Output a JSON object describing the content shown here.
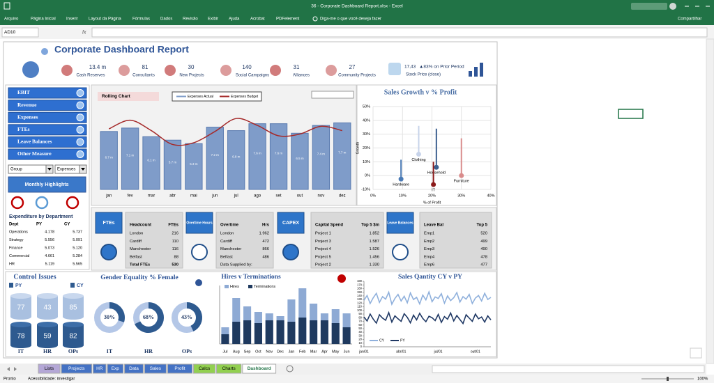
{
  "window": {
    "title": "36 - Corporate Dashboard Report.xlsx - Excel"
  },
  "ribbon": {
    "tabs": [
      "Arquivo",
      "Página Inicial",
      "Inserir",
      "Layout da Página",
      "Fórmulas",
      "Dados",
      "Revisão",
      "Exibir",
      "Ajuda",
      "Acrobat",
      "PDFelement"
    ],
    "search": "Diga-me o que você deseja fazer",
    "share": "Compartilhar"
  },
  "formula_bar": {
    "name_box": "AD10",
    "fx": "fx"
  },
  "dashboard": {
    "title": "Corporate Dashboard Report",
    "kpis": [
      {
        "value": "13.4 m",
        "label": "Cash Reserves"
      },
      {
        "value": "81",
        "label": "Consultants"
      },
      {
        "value": "30",
        "label": "New Projects"
      },
      {
        "value": "140",
        "label": "Social Campaigns"
      },
      {
        "value": "31",
        "label": "Alliances"
      },
      {
        "value": "27",
        "label": "Community Projects"
      }
    ],
    "stock": {
      "value": "17,43",
      "change": "▲83% on Prior Period",
      "label": "Stock Price (close)"
    },
    "menu": [
      "EBIT",
      "Revenue",
      "Expenses",
      "FTEs",
      "Leave Balances",
      "Other Measure"
    ],
    "dropdowns": [
      "Group",
      "Expenses"
    ],
    "highlights": "Monthly Highlights",
    "expenditure": {
      "title": "Expenditure by Department",
      "header": [
        "Dept",
        "PY",
        "CY"
      ],
      "rows": [
        [
          "Operations",
          "4.178",
          "5.737"
        ],
        [
          "Strategy",
          "5.556",
          "5.091"
        ],
        [
          "Finance",
          "5.073",
          "5.120"
        ],
        [
          "Commercial",
          "4.661",
          "5.284"
        ],
        [
          "HR",
          "5.119",
          "5.565"
        ]
      ]
    },
    "tables": [
      {
        "button": "FTEs",
        "header": [
          "Headcount",
          "FTEs"
        ],
        "rows": [
          [
            "London",
            "216"
          ],
          [
            "Cardiff",
            "110"
          ],
          [
            "Manchester",
            "116"
          ],
          [
            "Belfast",
            "88"
          ],
          [
            "Total FTEs",
            "530"
          ]
        ]
      },
      {
        "button": "Overtime Hours",
        "header": [
          "Overtime",
          "Hrs"
        ],
        "rows": [
          [
            "London",
            "1.962"
          ],
          [
            "Cardiff",
            "472"
          ],
          [
            "Manchester",
            "866"
          ],
          [
            "Belfast",
            "486"
          ],
          [
            "Data Supplied by:"
          ]
        ]
      },
      {
        "button": "CAPEX",
        "header": [
          "Capital Spend",
          "Top 5 $m"
        ],
        "rows": [
          [
            "Project 1",
            "1.852"
          ],
          [
            "Project 3",
            "1.587"
          ],
          [
            "Project 4",
            "1.526"
          ],
          [
            "Project 5",
            "1.456"
          ],
          [
            "Project 2",
            "1.330"
          ]
        ]
      },
      {
        "button": "Leave Balances",
        "header": [
          "Leave Bal",
          "Top 5"
        ],
        "rows": [
          [
            "Emp1",
            "520"
          ],
          [
            "Emp2",
            "499"
          ],
          [
            "Emp3",
            "490"
          ],
          [
            "Emp4",
            "478"
          ],
          [
            "Emp6",
            "477"
          ]
        ]
      }
    ]
  },
  "chart_data": [
    {
      "type": "combo",
      "title": "Rolling Chart",
      "categories": [
        "jan",
        "fev",
        "mar",
        "abr",
        "mai",
        "jun",
        "jul",
        "ago",
        "set",
        "out",
        "nov",
        "dez"
      ],
      "series": [
        {
          "name": "Expenses Actual",
          "type": "bar",
          "color": "#7f9cc9",
          "values": [
            6.7,
            7.1,
            6.1,
            5.7,
            5.3,
            7.2,
            6.8,
            7.6,
            7.6,
            6.5,
            7.4,
            7.7
          ],
          "value_labels": [
            "6.7 m",
            "7.1 m",
            "6.1 m",
            "5.7 m",
            "5.3 m",
            "7.2 m",
            "6.8 m",
            "7.6 m",
            "7.6 m",
            "6.5 m",
            "7.4 m",
            "7.7 m"
          ]
        },
        {
          "name": "Expenses Budget",
          "type": "line",
          "color": "#a52a2a",
          "values": [
            7.0,
            8.0,
            6.8,
            5.2,
            5.4,
            6.7,
            8.2,
            7.4,
            6.2,
            6.4,
            7.3,
            6.8
          ]
        }
      ]
    },
    {
      "type": "scatter",
      "title": "Sales Growth v % Profit",
      "x_label": "% of Profit",
      "y_label": "Growth",
      "xlim": [
        0,
        40
      ],
      "xticks": [
        {
          "value": 0,
          "label": "0%"
        },
        {
          "value": 10,
          "label": "10%"
        },
        {
          "value": 20,
          "label": "20%"
        },
        {
          "value": 30,
          "label": "30%"
        },
        {
          "value": 40,
          "label": "40%"
        }
      ],
      "ylim": [
        -10,
        50
      ],
      "yticks": [
        {
          "value": -10,
          "label": "-10%"
        },
        {
          "value": 0,
          "label": "0%"
        },
        {
          "value": 10,
          "label": "10%"
        },
        {
          "value": 20,
          "label": "20%"
        },
        {
          "value": 30,
          "label": "30%"
        },
        {
          "value": 40,
          "label": "40%"
        },
        {
          "value": 50,
          "label": "50%"
        }
      ],
      "grid": true,
      "points": [
        {
          "label": "Hardware",
          "x": 9.5,
          "y": -2.5,
          "stem_top": 11.5,
          "color": "#4a7ab5"
        },
        {
          "label": "Clothing",
          "x": 15.5,
          "y": 15.5,
          "stem_top": 36,
          "color": "#c7d3ea"
        },
        {
          "label": "Household",
          "x": 21.5,
          "y": 6,
          "stem_top": 34,
          "color": "#3b5f8f"
        },
        {
          "label": "IT",
          "x": 20.5,
          "y": -6.5,
          "stem_top": 10,
          "color": "#8b1a1a"
        },
        {
          "label": "Furniture",
          "x": 30,
          "y": 0,
          "stem_top": 27,
          "color": "#d98c8c"
        }
      ]
    },
    {
      "type": "cylinder",
      "title": "Control Issues",
      "categories": [
        "IT",
        "HR",
        "OPs"
      ],
      "series": [
        {
          "name": "PY",
          "color": "#a9c0e0",
          "values": [
            77,
            43,
            85
          ]
        },
        {
          "name": "CY",
          "color": "#2e5a8f",
          "values": [
            78,
            59,
            82
          ]
        }
      ]
    },
    {
      "type": "donut",
      "title": "Gender Equality % Female",
      "categories": [
        "IT",
        "HR",
        "OPs"
      ],
      "values": [
        30,
        68,
        43
      ],
      "value_labels": [
        "30%",
        "68%",
        "43%"
      ],
      "color": "#2e5a8f",
      "track_color": "#b4c7e7"
    },
    {
      "type": "bar",
      "title": "Hires v Terminations",
      "categories": [
        "Jul",
        "Aug",
        "Sep",
        "Oct",
        "Nov",
        "Dec",
        "Jan",
        "Feb",
        "Mar",
        "Apr",
        "May",
        "Jun"
      ],
      "overlap": true,
      "series": [
        {
          "name": "Hires",
          "color": "#8eaad4",
          "values": [
            12,
            33,
            27,
            23,
            22,
            20,
            32,
            40,
            29,
            22,
            25,
            22
          ]
        },
        {
          "name": "Terminations",
          "color": "#1f3a5f",
          "values": [
            7,
            16,
            17,
            15,
            17,
            17,
            16,
            19,
            17,
            17,
            15,
            12
          ]
        }
      ]
    },
    {
      "type": "line",
      "title": "Sales Qantity CY v PY",
      "categories": [
        "jan/01",
        null,
        null,
        null,
        null,
        null,
        null,
        null,
        null,
        null,
        null,
        null,
        "abr/01",
        null,
        null,
        null,
        null,
        null,
        null,
        null,
        null,
        null,
        null,
        null,
        "jul/01",
        null,
        null,
        null,
        null,
        null,
        null,
        null,
        null,
        null,
        null,
        null,
        "out/01",
        null,
        null,
        null,
        null,
        null
      ],
      "ylim": [
        0,
        180
      ],
      "yticks": [
        0,
        10,
        20,
        30,
        40,
        50,
        60,
        70,
        80,
        90,
        100,
        110,
        120,
        130,
        140,
        150,
        160,
        170,
        180
      ],
      "series": [
        {
          "name": "CY",
          "color": "#8fb0dc",
          "values": [
            128,
            141,
            119,
            135,
            147,
            122,
            138,
            131,
            150,
            117,
            133,
            144,
            126,
            139,
            121,
            148,
            130,
            136,
            118,
            142,
            129,
            151,
            124,
            137,
            133,
            146,
            120,
            140,
            127,
            135,
            149,
            123,
            138,
            131,
            144,
            119,
            134,
            141,
            126,
            147,
            130,
            136
          ]
        },
        {
          "name": "PY",
          "color": "#1f3864",
          "values": [
            82,
            71,
            90,
            76,
            65,
            88,
            79,
            73,
            94,
            68,
            85,
            77,
            70,
            91,
            81,
            66,
            87,
            74,
            92,
            78,
            69,
            84,
            80,
            72,
            89,
            67,
            83,
            76,
            93,
            71,
            86,
            75,
            64,
            88,
            79,
            70,
            90,
            77,
            82,
            68,
            85,
            74
          ]
        }
      ]
    }
  ],
  "sheet_tabs": [
    {
      "name": "Lists",
      "color": "#b4a7d6"
    },
    {
      "name": "Projects",
      "color": "#4472c4"
    },
    {
      "name": "HR",
      "color": "#4472c4"
    },
    {
      "name": "Exp",
      "color": "#4472c4"
    },
    {
      "name": "Data",
      "color": "#4472c4"
    },
    {
      "name": "Sales",
      "color": "#4472c4"
    },
    {
      "name": "Profit",
      "color": "#4472c4"
    },
    {
      "name": "Calcs",
      "color": "#92d050"
    },
    {
      "name": "Charts",
      "color": "#92d050"
    },
    {
      "name": "Dashboard",
      "color": "#ffffff"
    }
  ],
  "status": {
    "ready": "Pronto",
    "accessibility": "Acessibilidade: investigar",
    "zoom": "100%"
  }
}
